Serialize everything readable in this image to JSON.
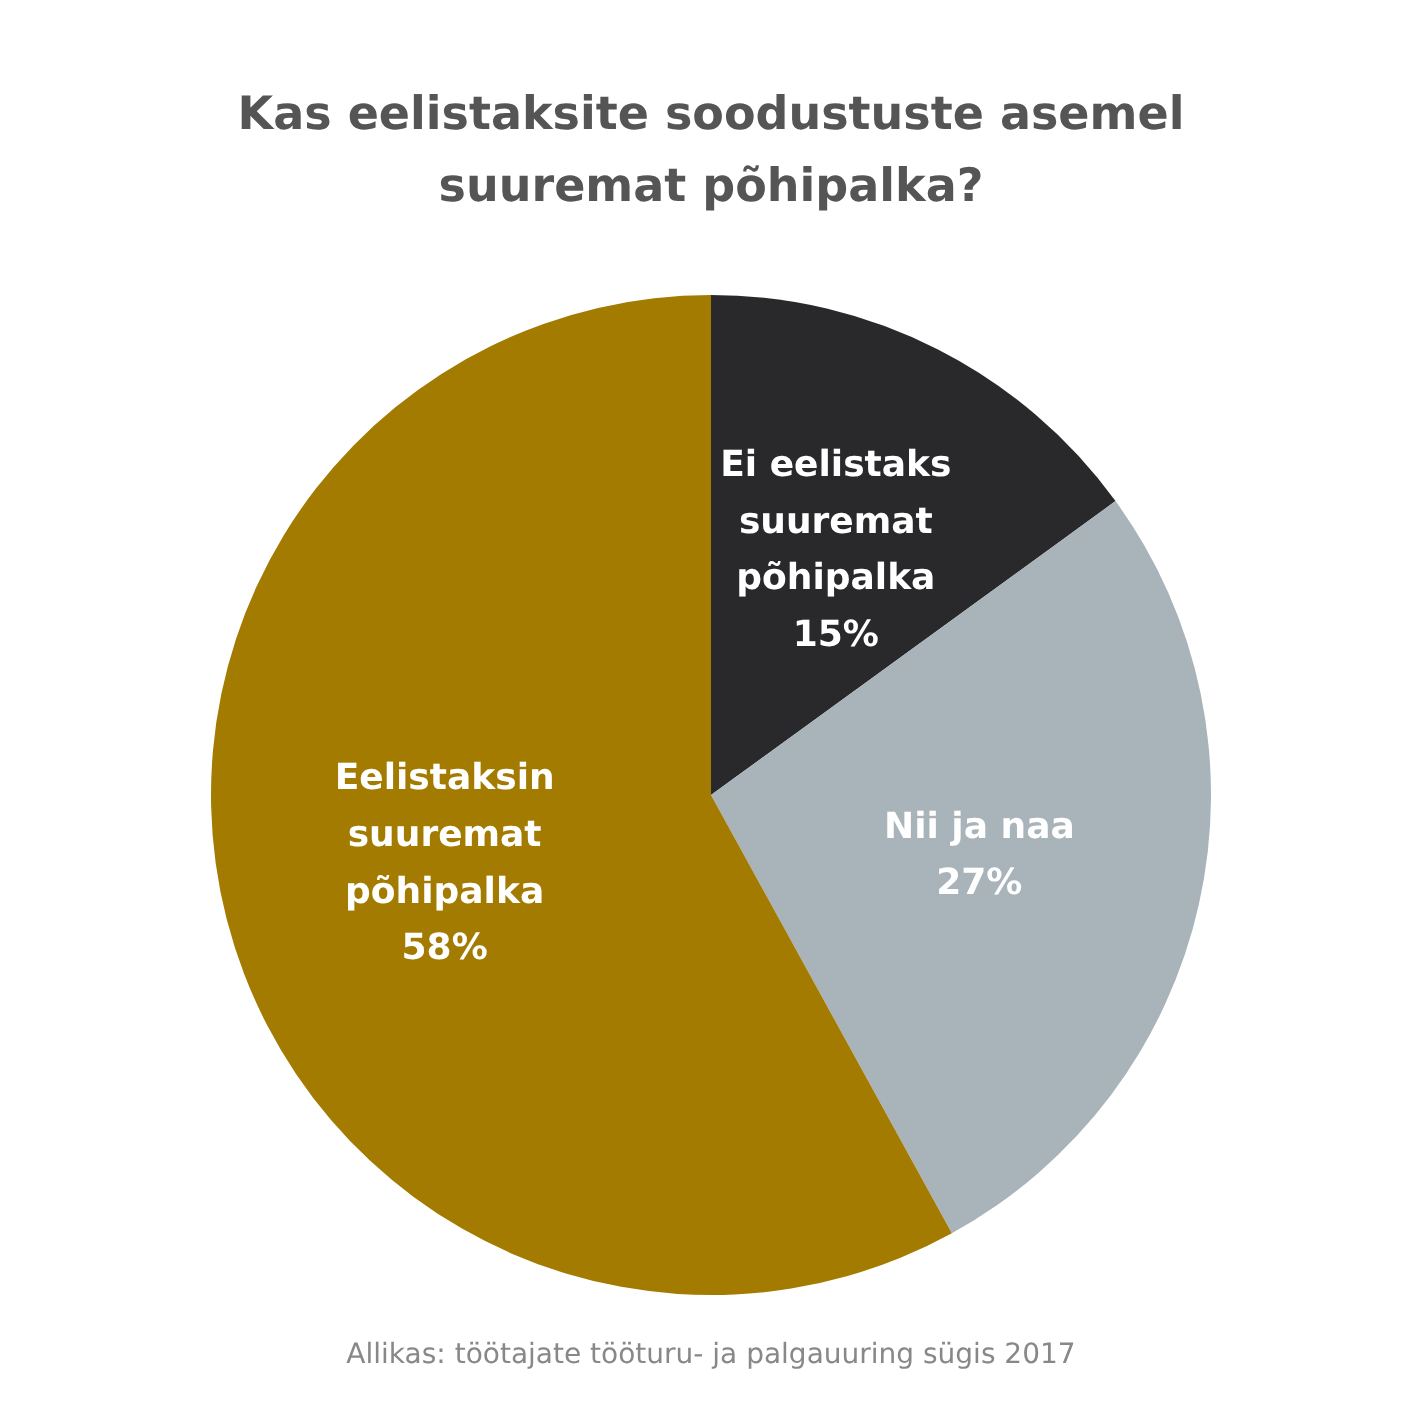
{
  "chart_data": {
    "type": "pie",
    "title": "Kas eelistaksite soodustuste asemel suuremat põhipalka?",
    "categories": [
      "Ei eelistaks suuremat põhipalka",
      "Nii ja naa",
      "Eelistaksin suuremat põhipalka"
    ],
    "values": [
      15,
      27,
      58
    ],
    "colors": [
      "#29292b",
      "#a8b3ba",
      "#a27b00"
    ],
    "value_labels": [
      "15%",
      "27%",
      "58%"
    ],
    "annotations": [
      "Allikas: töötajate tööturu- ja palgauuring sügis 2017"
    ]
  }
}
